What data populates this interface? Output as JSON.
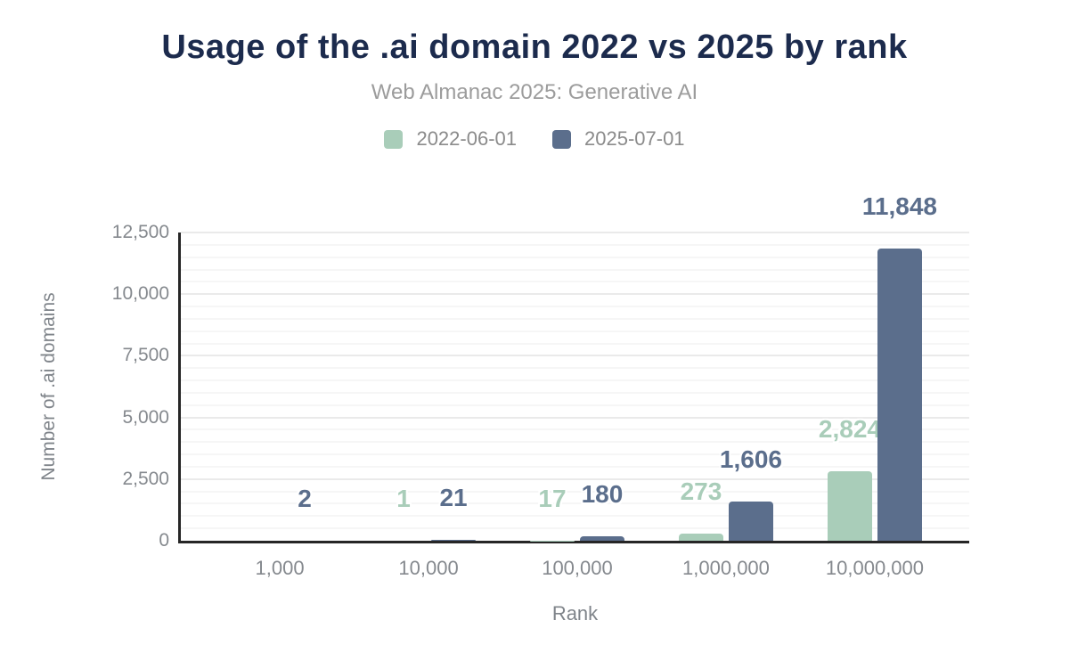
{
  "header": {
    "title": "Usage of the .ai domain 2022 vs 2025 by rank",
    "subtitle": "Web Almanac 2025: Generative AI"
  },
  "chart_data": {
    "type": "bar",
    "title": "Usage of the .ai domain 2022 vs 2025 by rank",
    "subtitle": "Web Almanac 2025: Generative AI",
    "categories": [
      "1,000",
      "10,000",
      "100,000",
      "1,000,000",
      "10,000,000"
    ],
    "series": [
      {
        "name": "2022-06-01",
        "color": "#a9cdb9",
        "values": [
          null,
          1,
          17,
          273,
          2824
        ],
        "labels": [
          "",
          "1",
          "17",
          "273",
          "2,824"
        ]
      },
      {
        "name": "2025-07-01",
        "color": "#5b6e8c",
        "values": [
          2,
          21,
          180,
          1606,
          11848
        ],
        "labels": [
          "2",
          "21",
          "180",
          "1,606",
          "11,848"
        ]
      }
    ],
    "xlabel": "Rank",
    "ylabel": "Number of .ai domains",
    "ylim": [
      0,
      12500
    ],
    "yticks": [
      0,
      2500,
      5000,
      7500,
      10000,
      12500
    ],
    "ytick_labels": [
      "0",
      "2,500",
      "5,000",
      "7,500",
      "10,000",
      "12,500"
    ],
    "grid": {
      "visible": true,
      "minor_step": 500,
      "major_step": 2500
    },
    "legend_position": "top",
    "axis_color": "#262626",
    "tick_color": "#85898e"
  }
}
